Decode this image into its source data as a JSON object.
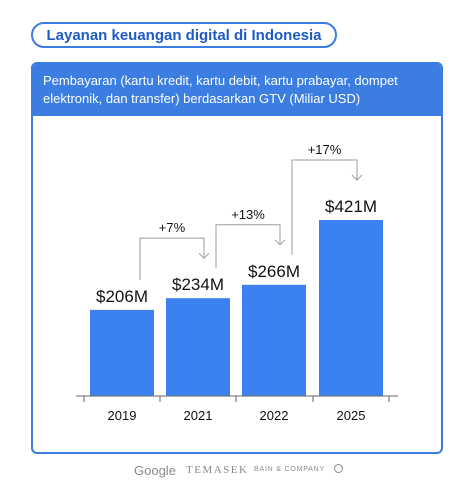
{
  "page": {
    "title": "Layanan keuangan digital di Indonesia",
    "subtitle": "Pembayaran (kartu kredit, kartu debit, kartu prabayar, dompet elektronik, dan transfer) berdasarkan GTV (Miliar USD)"
  },
  "chart_data": {
    "type": "bar",
    "title": "Layanan keuangan digital di Indonesia",
    "subtitle": "Pembayaran (kartu kredit, kartu debit, kartu prabayar, dompet elektronik, dan transfer) berdasarkan GTV (Miliar USD)",
    "categories": [
      "2019",
      "2021",
      "2022",
      "2025"
    ],
    "values": [
      206,
      234,
      266,
      421
    ],
    "value_labels": [
      "$206M",
      "$234M",
      "$266M",
      "$421M"
    ],
    "growth_labels": [
      "+7%",
      "+13%",
      "+17%"
    ],
    "xlabel": "",
    "ylabel": "",
    "ylim": [
      0,
      421
    ],
    "grid": false,
    "legend": "none",
    "colors": {
      "bar": "#3b82f0",
      "accent": "#3b7de0",
      "text": "#111111",
      "arrow": "#9e9e9e"
    }
  },
  "footer": {
    "logos": [
      "Google",
      "TEMASEK",
      "BAIN & COMPANY"
    ]
  }
}
